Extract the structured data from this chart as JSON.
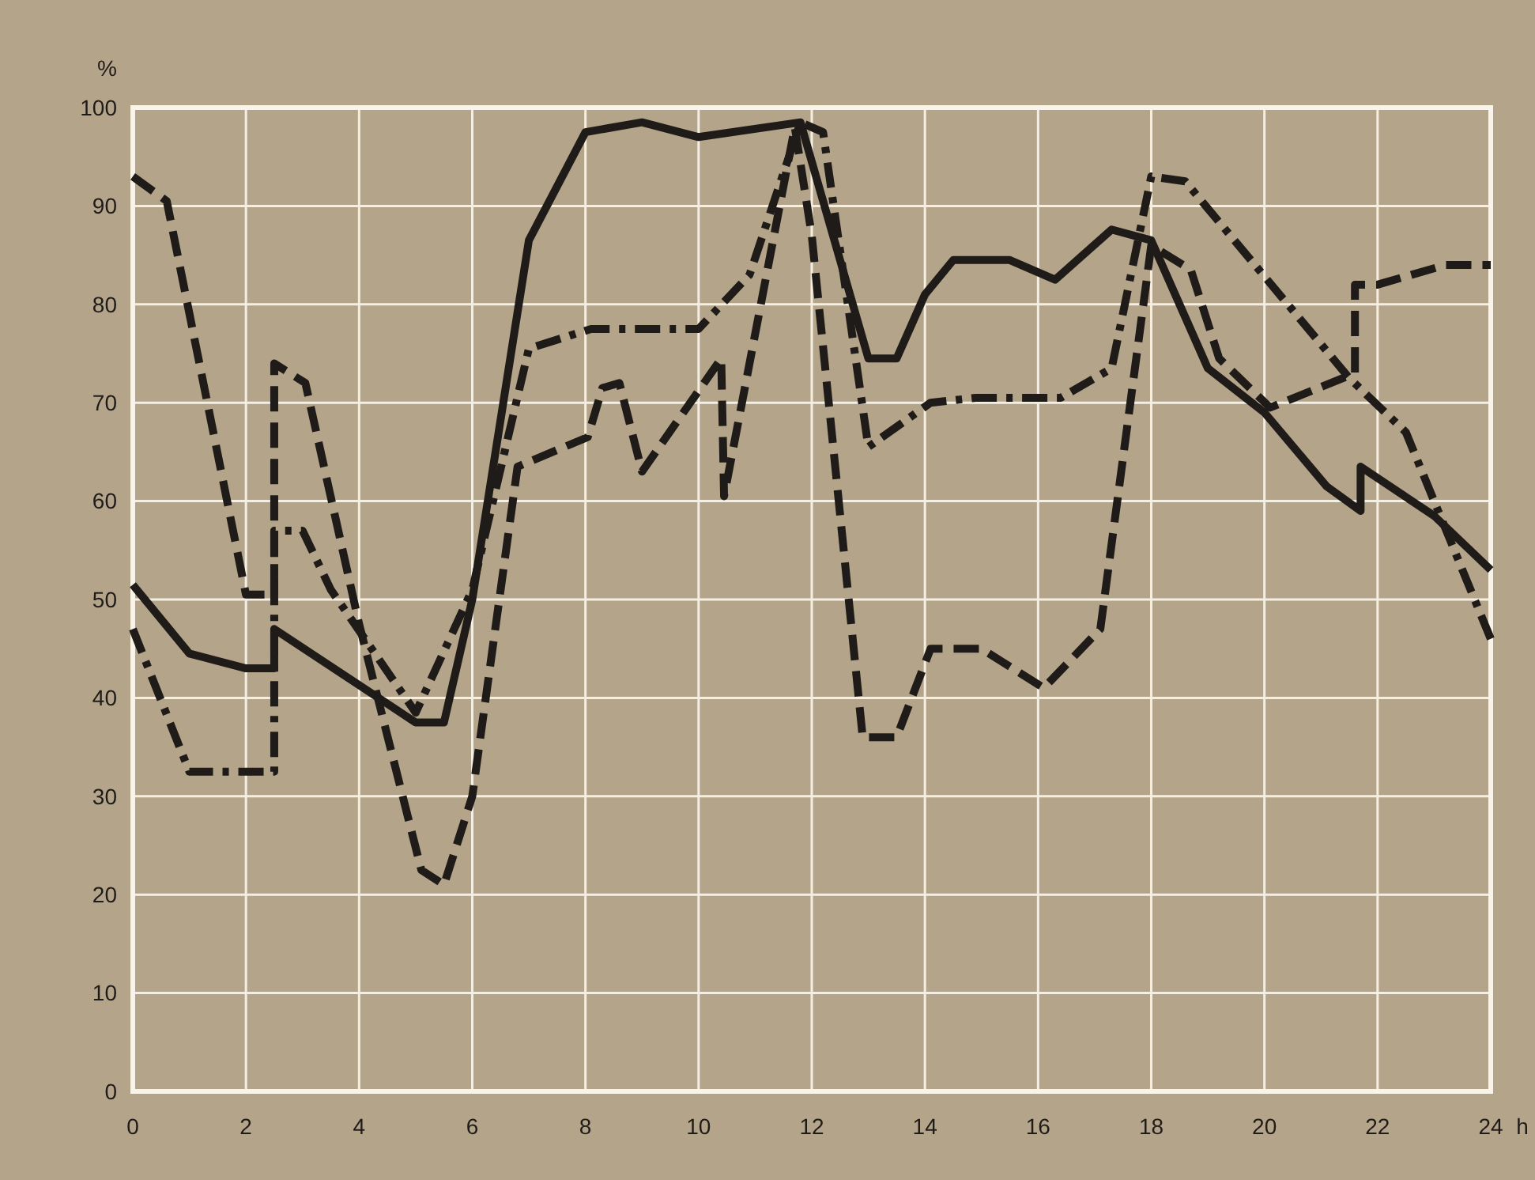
{
  "chart_data": {
    "type": "line",
    "xlabel": "h",
    "ylabel": "%",
    "xlim": [
      0,
      24
    ],
    "xticks": [
      0,
      2,
      4,
      6,
      8,
      10,
      12,
      14,
      16,
      18,
      20,
      22,
      24
    ],
    "ylim": [
      0,
      100
    ],
    "yticks": [
      0,
      10,
      20,
      30,
      40,
      50,
      60,
      70,
      80,
      90,
      100
    ],
    "grid": true,
    "series": [
      {
        "color": "#1f1b18",
        "line_style": "solid",
        "x": [
          0,
          1,
          2,
          2.5,
          2.5,
          5,
          5.5,
          6,
          7,
          8,
          9,
          10,
          11.8,
          13,
          13.5,
          14,
          14.5,
          15.5,
          16.3,
          17.3,
          18,
          19,
          20,
          21.1,
          21.7,
          21.7,
          23,
          24
        ],
        "values": [
          51.5,
          44.5,
          43,
          43,
          47,
          37.5,
          37.5,
          50,
          86.5,
          97.5,
          98.5,
          97,
          98.5,
          74.5,
          74.5,
          81,
          84.5,
          84.5,
          82.5,
          87.6,
          86.5,
          73.5,
          69,
          61.5,
          59,
          63.5,
          58.5,
          53
        ]
      },
      {
        "color": "#1f1b18",
        "line_style": "dashed",
        "x": [
          0,
          0.6,
          2,
          2.5,
          2.5,
          3.05,
          4,
          5.1,
          5.5,
          6,
          6.8,
          8.04,
          8.3,
          8.6,
          9,
          10.4,
          10.45,
          11.7,
          12,
          12.9,
          13.5,
          14.1,
          15,
          16.1,
          17.1,
          18,
          18.7,
          19.2,
          20.1,
          21.6,
          21.6,
          22,
          23.2,
          24
        ],
        "values": [
          93,
          90.5,
          50.5,
          50.5,
          74,
          72,
          47.5,
          22.5,
          21,
          30,
          63.5,
          66.5,
          71.5,
          72,
          63,
          74.5,
          60.5,
          98,
          87,
          36,
          36,
          45,
          45,
          41,
          47,
          86,
          83.5,
          74.5,
          69.5,
          73,
          82,
          82,
          84,
          84
        ]
      },
      {
        "color": "#1f1b18",
        "line_style": "dashdot",
        "x": [
          0,
          1,
          2.5,
          2.5,
          3,
          3.5,
          5,
          6,
          7,
          8.1,
          10,
          10.9,
          11.8,
          12.2,
          13,
          14.1,
          14.9,
          16.4,
          17.3,
          18,
          18.6,
          21.5,
          22.5,
          24
        ],
        "values": [
          47,
          32.5,
          32.5,
          57,
          57,
          51,
          38.5,
          51,
          75.5,
          77.5,
          77.5,
          83,
          98.5,
          97.5,
          65.5,
          70,
          70.5,
          70.5,
          73.5,
          93,
          92.5,
          72.5,
          67,
          46
        ]
      }
    ]
  }
}
